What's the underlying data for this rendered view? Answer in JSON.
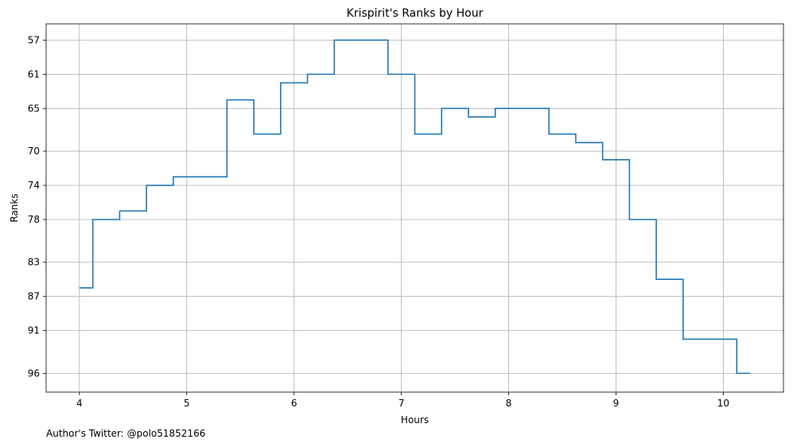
{
  "chart_data": {
    "type": "line",
    "title": "Krispirit's Ranks by Hour",
    "xlabel": "Hours",
    "ylabel": "Ranks",
    "footer": "Author's Twitter: @polo51852166",
    "xlim": [
      3.69,
      10.56
    ],
    "ylim": [
      98.2,
      55.1
    ],
    "x_ticks": [
      4,
      5,
      6,
      7,
      8,
      9,
      10
    ],
    "y_ticks": [
      57,
      61,
      65,
      70,
      74,
      78,
      83,
      87,
      91,
      96
    ],
    "grid": true,
    "step": "mid",
    "series": [
      {
        "color": "#1f77b4",
        "x": [
          4.0,
          4.25,
          4.5,
          4.75,
          5.0,
          5.25,
          5.5,
          5.75,
          6.0,
          6.25,
          6.5,
          6.75,
          7.0,
          7.25,
          7.5,
          7.75,
          8.0,
          8.25,
          8.5,
          8.75,
          9.0,
          9.25,
          9.5,
          9.75,
          10.0,
          10.25
        ],
        "y": [
          86,
          78,
          77,
          74,
          73,
          73,
          64,
          68,
          62,
          61,
          57,
          57,
          61,
          68,
          65,
          66,
          65,
          65,
          68,
          69,
          71,
          78,
          85,
          92,
          92,
          96
        ]
      }
    ]
  }
}
